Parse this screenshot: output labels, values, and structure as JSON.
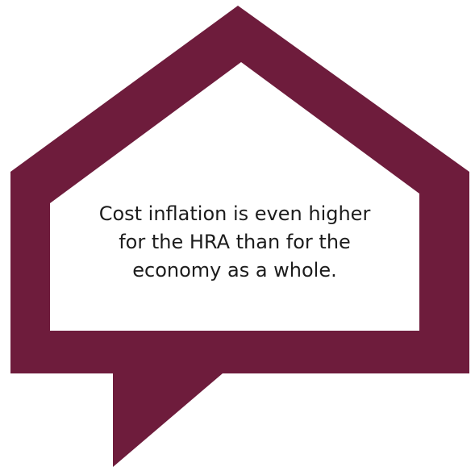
{
  "callout": {
    "lines": [
      "Cost inflation is even higher",
      "for the HRA than for the",
      "economy as a whole."
    ]
  },
  "colors": {
    "frame": "#6e1c3c",
    "inner": "#ffffff",
    "text": "#1c1c1c"
  },
  "icons": {
    "frame": "house-speech-bubble-icon"
  }
}
